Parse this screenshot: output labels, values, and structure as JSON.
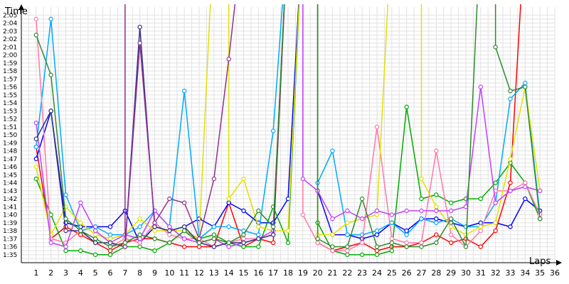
{
  "chart_data": {
    "type": "line",
    "title": "",
    "ylabel": "Time",
    "xlabel": "Laps",
    "x": [
      1,
      2,
      3,
      4,
      5,
      6,
      7,
      8,
      9,
      10,
      11,
      12,
      13,
      14,
      15,
      16,
      17,
      18,
      19,
      20,
      21,
      22,
      23,
      24,
      25,
      26,
      27,
      28,
      29,
      30,
      31,
      32,
      33,
      34,
      35
    ],
    "xlim": [
      0,
      36
    ],
    "x_ticks": [
      "1",
      "2",
      "3",
      "4",
      "5",
      "6",
      "7",
      "8",
      "9",
      "10",
      "11",
      "12",
      "13",
      "14",
      "15",
      "16",
      "17",
      "18",
      "19",
      "20",
      "21",
      "22",
      "23",
      "24",
      "25",
      "26",
      "27",
      "28",
      "29",
      "30",
      "31",
      "32",
      "33",
      "34",
      "35",
      "36"
    ],
    "ylim": [
      94,
      126
    ],
    "y_ticks": [
      "1:35",
      "1:36",
      "1:37",
      "1:38",
      "1:39",
      "1:40",
      "1:41",
      "1:42",
      "1:43",
      "1:44",
      "1:45",
      "1:46",
      "1:47",
      "1:48",
      "1:49",
      "1:50",
      "1:51",
      "1:52",
      "1:53",
      "1:54",
      "1:55",
      "1:56",
      "1:57",
      "1:58",
      "1:59",
      "2:00",
      "2:01",
      "2:02",
      "2:03",
      "2:04",
      "2:05"
    ],
    "grid": true,
    "series": [
      {
        "color": "#ff0000",
        "values": [
          108.5,
          97,
          98.5,
          97.5,
          96.5,
          95.5,
          96.5,
          97,
          97,
          96.5,
          96,
          96,
          96,
          101.5,
          96,
          97,
          96.5,
          null,
          null,
          96.5,
          95.5,
          96,
          96.5,
          95.5,
          96,
          96,
          96.5,
          97.5,
          96.5,
          97,
          96,
          98,
          104,
          null,
          null
        ]
      },
      {
        "color": "#0000ff",
        "values": [
          107,
          113,
          99,
          98.5,
          98.5,
          98.5,
          100.5,
          96.5,
          98.5,
          98,
          98.5,
          99.5,
          98.5,
          101.5,
          100.5,
          99,
          99,
          102,
          null,
          103,
          97.5,
          97.5,
          97,
          97.5,
          99,
          98,
          99.5,
          99.5,
          99,
          98.5,
          99,
          99,
          98.5,
          102,
          100.5
        ]
      },
      {
        "color": "#00aa00",
        "values": [
          104.5,
          100,
          95.5,
          95.5,
          95,
          95,
          96,
          96,
          95.5,
          96.5,
          98,
          97,
          97.5,
          96.5,
          96,
          96,
          101,
          96.5,
          null,
          99,
          95.5,
          95,
          95,
          95,
          95.5,
          113.5,
          102,
          102.5,
          101.5,
          102,
          102,
          104,
          106.5,
          104,
          99.5
        ]
      },
      {
        "color": "#00a8ff",
        "values": [
          108.5,
          124.5,
          102.5,
          98,
          98.5,
          97.5,
          97.5,
          98.5,
          100.5,
          98.5,
          115.5,
          97,
          98.5,
          98.5,
          98,
          97.5,
          110.5,
          null,
          null,
          104,
          108,
          97.5,
          97.5,
          98,
          99,
          97.5,
          99.5,
          99,
          99.5,
          98.5,
          98.5,
          101.5,
          114.5,
          116.5,
          100
        ]
      },
      {
        "color": "#ff77aa",
        "values": [
          124.5,
          97,
          96.5,
          98,
          97,
          96,
          97,
          96.5,
          99,
          97.5,
          97,
          97,
          96,
          96.5,
          97,
          97,
          97.5,
          null,
          100,
          96.5,
          95.5,
          95.5,
          96.5,
          111,
          97,
          96.5,
          96.5,
          108,
          97.5,
          96,
          98,
          103,
          103,
          104,
          100
        ]
      },
      {
        "color": "#e0e000",
        "values": [
          106,
          97.5,
          101,
          99,
          97.5,
          97,
          97.5,
          99.5,
          98,
          98,
          98,
          97,
          null,
          102,
          104.5,
          98.5,
          98,
          98,
          null,
          97.5,
          97.5,
          99,
          99.5,
          100,
          null,
          null,
          104.5,
          101,
          98.5,
          97.5,
          98.5,
          99,
          107,
          116,
          103
        ]
      },
      {
        "color": "#c040ff",
        "values": [
          111.5,
          96.5,
          96,
          101.5,
          98,
          96.5,
          97.5,
          97,
          100.5,
          98.5,
          97,
          96.5,
          97,
          96,
          96.5,
          97,
          98,
          null,
          104.5,
          103,
          99.5,
          100.5,
          99.5,
          100.5,
          100,
          100.5,
          100.5,
          100.5,
          100.5,
          101,
          116,
          101.5,
          103,
          103.5,
          103
        ]
      },
      {
        "color": "#333388",
        "values": [
          109.5,
          113,
          98,
          98,
          96.5,
          96.5,
          96,
          123.5,
          98.5,
          98,
          98.5,
          96.5,
          96,
          96.5,
          96.5,
          97,
          97.5,
          null,
          null,
          null,
          null,
          null,
          null,
          null,
          null,
          null,
          null,
          null,
          null,
          null,
          null,
          null,
          null,
          null,
          null
        ]
      },
      {
        "color": "#903090",
        "values": [
          null,
          null,
          null,
          null,
          null,
          null,
          96,
          121.5,
          99,
          102,
          101.5,
          97,
          104.5,
          119.5,
          null,
          null,
          null,
          null,
          null,
          null,
          null,
          null,
          null,
          null,
          null,
          null,
          null,
          null,
          null,
          null,
          null,
          null,
          null,
          null,
          null
        ]
      },
      {
        "color": "#2e8b2e",
        "values": [
          122.5,
          117.5,
          99.5,
          98,
          97,
          96,
          96.5,
          97.5,
          97,
          96.5,
          98,
          96.5,
          97,
          96.5,
          97.5,
          100.5,
          98.5,
          null,
          null,
          97,
          96,
          96,
          102,
          96,
          96.5,
          96,
          96,
          96.5,
          99.5,
          96,
          null,
          121,
          115.5,
          116,
          99.5
        ]
      }
    ]
  }
}
